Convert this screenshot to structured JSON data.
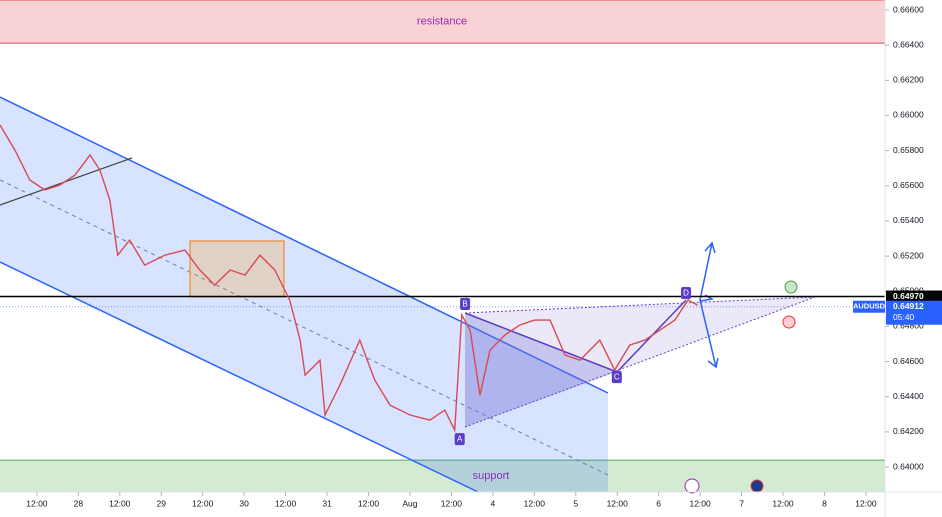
{
  "chart_data": {
    "type": "line",
    "series": [
      {
        "name": "AUDUSD",
        "color": "#d94a52",
        "x": [
          -0.89,
          -0.53,
          -0.17,
          0.19,
          0.55,
          0.92,
          1.28,
          1.52,
          1.76,
          1.95,
          2.24,
          2.6,
          3.09,
          3.57,
          3.93,
          4.29,
          4.66,
          5.02,
          5.38,
          5.74,
          6.1,
          6.35,
          6.47,
          6.83,
          6.95,
          7.31,
          7.79,
          8.15,
          8.52,
          9.0,
          9.48,
          9.84,
          10.08,
          10.25,
          10.45,
          10.69,
          10.93,
          11.29,
          11.65,
          12.01,
          12.38,
          12.74,
          13.1,
          13.58,
          13.94,
          14.3,
          14.67,
          15.03,
          15.39,
          15.71,
          15.94
        ],
        "values": [
          0.65946,
          0.65803,
          0.65633,
          0.65576,
          0.65604,
          0.65661,
          0.65775,
          0.6569,
          0.65519,
          0.65206,
          0.65291,
          0.65149,
          0.65206,
          0.65234,
          0.65121,
          0.65035,
          0.65121,
          0.65092,
          0.65206,
          0.65121,
          0.6495,
          0.64722,
          0.64523,
          0.64608,
          0.64296,
          0.64466,
          0.64722,
          0.64495,
          0.64352,
          0.64296,
          0.64267,
          0.64324,
          0.6421,
          0.64865,
          0.64779,
          0.64409,
          0.64665,
          0.64751,
          0.64808,
          0.64836,
          0.64836,
          0.64637,
          0.64608,
          0.64722,
          0.64552,
          0.64694,
          0.64722,
          0.64779,
          0.64836,
          0.6495,
          0.64921
        ]
      }
    ],
    "xlim": [
      -0.89,
      20.46
    ],
    "ylim": [
      0.63858,
      0.66657
    ],
    "xticks": [
      {
        "value": 0,
        "label": "12:00"
      },
      {
        "value": 1,
        "label": "28"
      },
      {
        "value": 2,
        "label": "12:00"
      },
      {
        "value": 3,
        "label": "29"
      },
      {
        "value": 4,
        "label": "12:00"
      },
      {
        "value": 5,
        "label": "30"
      },
      {
        "value": 6,
        "label": "12:00"
      },
      {
        "value": 7,
        "label": "31"
      },
      {
        "value": 8,
        "label": "12:00"
      },
      {
        "value": 9,
        "label": "Aug"
      },
      {
        "value": 10,
        "label": "12:00"
      },
      {
        "value": 11,
        "label": "4"
      },
      {
        "value": 12,
        "label": "12:00"
      },
      {
        "value": 13,
        "label": "5"
      },
      {
        "value": 14,
        "label": "12:00"
      },
      {
        "value": 15,
        "label": "6"
      },
      {
        "value": 16,
        "label": "12:00"
      },
      {
        "value": 17,
        "label": "7"
      },
      {
        "value": 18,
        "label": "12:00"
      },
      {
        "value": 19,
        "label": "8"
      },
      {
        "value": 20,
        "label": "12:00"
      }
    ],
    "yticks": [
      {
        "value": 0.666,
        "label": "0.66600"
      },
      {
        "value": 0.664,
        "label": "0.66400"
      },
      {
        "value": 0.662,
        "label": "0.66200"
      },
      {
        "value": 0.66,
        "label": "0.66000"
      },
      {
        "value": 0.658,
        "label": "0.65800"
      },
      {
        "value": 0.656,
        "label": "0.65600"
      },
      {
        "value": 0.654,
        "label": "0.65400"
      },
      {
        "value": 0.652,
        "label": "0.65200"
      },
      {
        "value": 0.65,
        "label": "0.65000"
      },
      {
        "value": 0.648,
        "label": "0.64800"
      },
      {
        "value": 0.646,
        "label": "0.64600"
      },
      {
        "value": 0.644,
        "label": "0.64400"
      },
      {
        "value": 0.642,
        "label": "0.64200"
      },
      {
        "value": 0.64,
        "label": "0.64000"
      }
    ],
    "grid": false,
    "zones": [
      {
        "label": "resistance",
        "from": 0.66412,
        "to": 0.66657,
        "color": "#f8d2d4",
        "edge": "#e84a5a",
        "text_color": "#9c27b0"
      },
      {
        "label": "support",
        "from": 0.63858,
        "to": 0.64039,
        "color": "#d3ead3",
        "edge": "#4caf50",
        "text_color": "#9c27b0"
      }
    ],
    "price_line": {
      "value": 0.6497,
      "label": "0.64970",
      "color": "#000000"
    },
    "last_price": {
      "value": 0.64912,
      "label": "0.64912",
      "countdown": "05:40",
      "color": "#2962ff"
    },
    "pattern_points": [
      {
        "label": "A",
        "x": 10.2,
        "y": 0.6421,
        "below": true
      },
      {
        "label": "B",
        "x": 10.33,
        "y": 0.64876,
        "below": false
      },
      {
        "label": "C",
        "x": 13.99,
        "y": 0.64563,
        "below": true
      },
      {
        "label": "D",
        "x": 15.66,
        "y": 0.64939,
        "below": false
      }
    ]
  }
}
